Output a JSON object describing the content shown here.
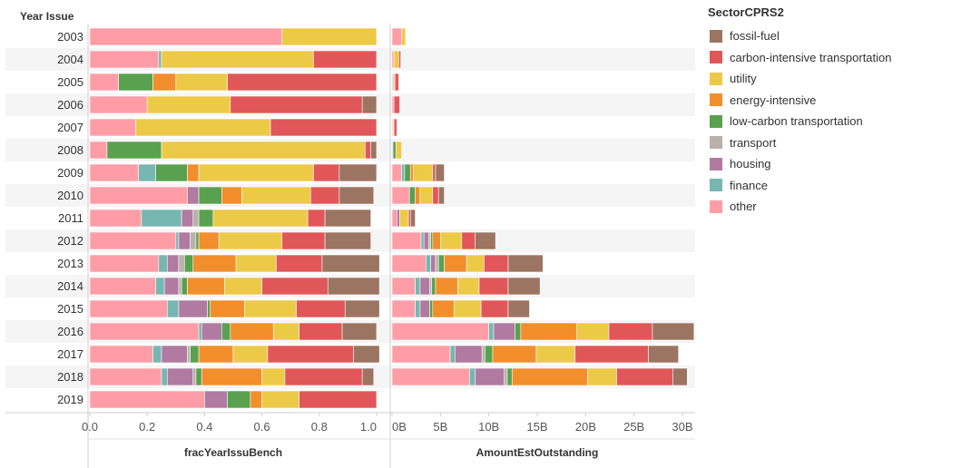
{
  "colors": {
    "fossil-fuel": "#9c7462",
    "carbon-intensive transportation": "#e15759",
    "utility": "#edc948",
    "energy-intensive": "#f28e2b",
    "low-carbon transportation": "#59a14f",
    "transport": "#bab0ac",
    "housing": "#b07aa1",
    "finance": "#76b7b2",
    "other": "#ff9da7"
  },
  "legend": {
    "title": "SectorCPRS2",
    "items": [
      "fossil-fuel",
      "carbon-intensive transportation",
      "utility",
      "energy-intensive",
      "low-carbon transportation",
      "transport",
      "housing",
      "finance",
      "other"
    ]
  },
  "chart_data": {
    "type": "bar",
    "orientation": "horizontal-stacked",
    "row_header": "Year Issue",
    "categories": [
      "2003",
      "2004",
      "2005",
      "2006",
      "2007",
      "2008",
      "2009",
      "2010",
      "2011",
      "2012",
      "2013",
      "2014",
      "2015",
      "2016",
      "2017",
      "2018",
      "2019"
    ],
    "stack_order": [
      "other",
      "finance",
      "housing",
      "transport",
      "low-carbon transportation",
      "energy-intensive",
      "utility",
      "carbon-intensive transportation",
      "fossil-fuel"
    ],
    "panels": [
      {
        "xlabel": "fracYearIssuBench",
        "ticks": [
          "0.0",
          "0.2",
          "0.4",
          "0.6",
          "0.8",
          "1.0"
        ],
        "xlim": [
          0,
          1
        ],
        "series": [
          {
            "name": "other",
            "values": [
              0.67,
              0.24,
              0.1,
              0.2,
              0.16,
              0.06,
              0.17,
              0.34,
              0.18,
              0.3,
              0.24,
              0.23,
              0.27,
              0.38,
              0.22,
              0.25,
              0.4
            ]
          },
          {
            "name": "finance",
            "values": [
              0,
              0.01,
              0,
              0,
              0,
              0,
              0.06,
              0,
              0.14,
              0.01,
              0.03,
              0.03,
              0.04,
              0.01,
              0.03,
              0.02,
              0
            ]
          },
          {
            "name": "housing",
            "values": [
              0,
              0,
              0,
              0,
              0,
              0,
              0,
              0.04,
              0.04,
              0.04,
              0.04,
              0.05,
              0.1,
              0.07,
              0.09,
              0.09,
              0.08
            ]
          },
          {
            "name": "transport",
            "values": [
              0,
              0,
              0,
              0,
              0,
              0,
              0,
              0,
              0.02,
              0.02,
              0.02,
              0.01,
              0,
              0,
              0.01,
              0.01,
              0
            ]
          },
          {
            "name": "low-carbon transportation",
            "values": [
              0,
              0,
              0.12,
              0,
              0,
              0.19,
              0.11,
              0.08,
              0.05,
              0.01,
              0.03,
              0.02,
              0.01,
              0.03,
              0.03,
              0.02,
              0.08
            ]
          },
          {
            "name": "energy-intensive",
            "values": [
              0,
              0,
              0.08,
              0,
              0,
              0,
              0.04,
              0.07,
              0,
              0.07,
              0.15,
              0.13,
              0.12,
              0.15,
              0.12,
              0.21,
              0.04
            ]
          },
          {
            "name": "utility",
            "values": [
              0.33,
              0.53,
              0.18,
              0.29,
              0.47,
              0.71,
              0.4,
              0.24,
              0.33,
              0.22,
              0.14,
              0.13,
              0.18,
              0.09,
              0.12,
              0.08,
              0.13
            ]
          },
          {
            "name": "carbon-intensive transportation",
            "values": [
              0,
              0.22,
              0.52,
              0.46,
              0.37,
              0.02,
              0.09,
              0.1,
              0.06,
              0.15,
              0.16,
              0.23,
              0.17,
              0.15,
              0.3,
              0.27,
              0.27
            ]
          },
          {
            "name": "fossil-fuel",
            "values": [
              0,
              0,
              0,
              0.05,
              0,
              0.02,
              0.13,
              0.12,
              0.16,
              0.16,
              0.2,
              0.18,
              0.12,
              0.12,
              0.09,
              0.04,
              0
            ]
          }
        ]
      },
      {
        "xlabel": "AmountEstOutstanding",
        "ticks": [
          "0B",
          "5B",
          "10B",
          "15B",
          "20B",
          "25B",
          "30B"
        ],
        "xlim": [
          0,
          30
        ],
        "unit": "B",
        "series": [
          {
            "name": "other",
            "values": [
              1.0,
              0.2,
              0.1,
              0.2,
              0.1,
              0.1,
              1.0,
              1.8,
              0.5,
              3.0,
              3.5,
              2.4,
              2.4,
              10.0,
              6.0,
              8.0,
              0
            ]
          },
          {
            "name": "finance",
            "values": [
              0,
              0,
              0,
              0,
              0,
              0,
              0.3,
              0,
              0,
              0.3,
              0.5,
              0.5,
              0.5,
              0.5,
              0.5,
              0.6,
              0
            ]
          },
          {
            "name": "housing",
            "values": [
              0,
              0,
              0,
              0,
              0,
              0,
              0,
              0,
              0.3,
              0.5,
              0.5,
              1.0,
              1.0,
              2.2,
              2.8,
              3.0,
              0
            ]
          },
          {
            "name": "transport",
            "values": [
              0,
              0,
              0,
              0,
              0,
              0,
              0,
              0,
              0,
              0.2,
              0.3,
              0.2,
              0,
              0,
              0.3,
              0.3,
              0
            ]
          },
          {
            "name": "low-carbon transportation",
            "values": [
              0,
              0,
              0.1,
              0,
              0,
              0.3,
              0.6,
              0.6,
              0,
              0.2,
              0.6,
              0.4,
              0.3,
              0.6,
              0.8,
              0.5,
              0
            ]
          },
          {
            "name": "energy-intensive",
            "values": [
              0,
              0,
              0.1,
              0,
              0,
              0,
              0.3,
              0.5,
              0,
              0.8,
              2.3,
              2.3,
              2.2,
              5.8,
              4.5,
              7.8,
              0
            ]
          },
          {
            "name": "utility",
            "values": [
              0.4,
              0.5,
              0,
              0,
              0.1,
              0.6,
              2.0,
              1.3,
              0.9,
              2.2,
              1.8,
              2.2,
              2.8,
              3.3,
              4.0,
              3.0,
              0
            ]
          },
          {
            "name": "carbon-intensive transportation",
            "values": [
              0,
              0.2,
              0.4,
              0.6,
              0.3,
              0,
              0.3,
              0.6,
              0.2,
              1.4,
              2.5,
              3.0,
              2.8,
              4.5,
              7.6,
              5.8,
              0
            ]
          },
          {
            "name": "fossil-fuel",
            "values": [
              0,
              0,
              0,
              0,
              0,
              0,
              0.9,
              0.6,
              0.5,
              2.1,
              3.6,
              3.3,
              2.2,
              4.3,
              3.1,
              1.5,
              0
            ]
          }
        ]
      }
    ]
  }
}
